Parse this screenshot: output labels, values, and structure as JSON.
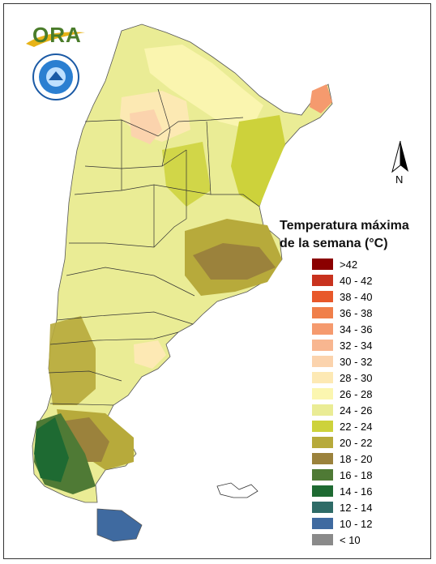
{
  "branding": {
    "ora_logo_text": "ORA",
    "seal_icon": "smn-seal-icon"
  },
  "north_arrow": {
    "label": "N"
  },
  "legend": {
    "title_line1": "Temperatura máxima",
    "title_line2": "de la semana (°C)",
    "items": [
      {
        "label": ">42",
        "color": "#8b0000"
      },
      {
        "label": "40 - 42",
        "color": "#c8321e"
      },
      {
        "label": "38 - 40",
        "color": "#e8582a"
      },
      {
        "label": "36 - 38",
        "color": "#f07f4a"
      },
      {
        "label": "34 - 36",
        "color": "#f59a6e"
      },
      {
        "label": "32 - 34",
        "color": "#f8b690"
      },
      {
        "label": "30 - 32",
        "color": "#fbd3ad"
      },
      {
        "label": "28 - 30",
        "color": "#fde9b4"
      },
      {
        "label": "26 - 28",
        "color": "#fbf6b0"
      },
      {
        "label": "24 - 26",
        "color": "#eaec95"
      },
      {
        "label": "22 - 24",
        "color": "#cdd23b"
      },
      {
        "label": "20 - 22",
        "color": "#b7aa3b"
      },
      {
        "label": "18 - 20",
        "color": "#9b823c"
      },
      {
        "label": "16 - 18",
        "color": "#4f7a35"
      },
      {
        "label": "14 - 16",
        "color": "#1e6a32"
      },
      {
        "label": "12 - 14",
        "color": "#2e6b67"
      },
      {
        "label": "10 - 12",
        "color": "#3f6aa0"
      },
      {
        "label": "< 10",
        "color": "#8a8a8a"
      }
    ]
  }
}
